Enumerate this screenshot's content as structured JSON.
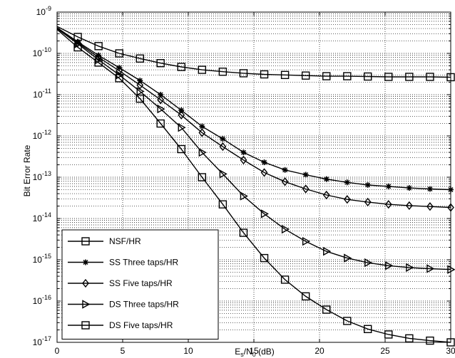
{
  "chart_data": {
    "type": "line",
    "title": "",
    "xlabel": "E",
    "xlabel_sub_s": "s",
    "xlabel_mid": "/N",
    "xlabel_sub_0": "0",
    "xlabel_unit": " (dB)",
    "ylabel": "Bit Error Rate",
    "xlim": [
      0,
      30
    ],
    "ylim_log10": [
      -17,
      -9
    ],
    "y_scale": "log",
    "grid": true,
    "legend_position": "bottom-left",
    "x_ticks": [
      "0",
      "5",
      "10",
      "15",
      "20",
      "25",
      "30"
    ],
    "y_tick_base": "10",
    "y_tick_exponents": [
      "-17",
      "-16",
      "-15",
      "-14",
      "-13",
      "-12",
      "-11",
      "-10",
      "-9"
    ],
    "series": [
      {
        "name": "NSF/HR",
        "marker": "square",
        "x": [
          0,
          1.58,
          3.16,
          4.74,
          6.32,
          7.89,
          9.47,
          11.05,
          12.63,
          14.21,
          15.79,
          17.37,
          18.95,
          20.53,
          22.11,
          23.68,
          25.26,
          26.84,
          28.42,
          30
        ],
        "y": [
          4.5e-10,
          2.5e-10,
          1.5e-10,
          1e-10,
          7.5e-11,
          5.8e-11,
          4.7e-11,
          4e-11,
          3.6e-11,
          3.3e-11,
          3.1e-11,
          3e-11,
          2.9e-11,
          2.8e-11,
          2.8e-11,
          2.75e-11,
          2.7e-11,
          2.7e-11,
          2.7e-11,
          2.65e-11
        ]
      },
      {
        "name": "SS Three taps/HR",
        "marker": "star",
        "x": [
          0,
          1.58,
          3.16,
          4.74,
          6.32,
          7.89,
          9.47,
          11.05,
          12.63,
          14.21,
          15.79,
          17.37,
          18.95,
          20.53,
          22.11,
          23.68,
          25.26,
          26.84,
          28.42,
          30
        ],
        "y": [
          4.2e-10,
          1.9e-10,
          9e-11,
          4.5e-11,
          2.2e-11,
          1e-11,
          4.2e-12,
          1.7e-12,
          8.5e-13,
          4e-13,
          2.3e-13,
          1.5e-13,
          1.15e-13,
          9e-14,
          7.5e-14,
          6.5e-14,
          6e-14,
          5.5e-14,
          5.2e-14,
          5e-14
        ]
      },
      {
        "name": "SS Five taps/HR",
        "marker": "diamond",
        "x": [
          0,
          1.58,
          3.16,
          4.74,
          6.32,
          7.89,
          9.47,
          11.05,
          12.63,
          14.21,
          15.79,
          17.37,
          18.95,
          20.53,
          22.11,
          23.68,
          25.26,
          26.84,
          28.42,
          30
        ],
        "y": [
          4.2e-10,
          1.8e-10,
          8e-11,
          3.8e-11,
          1.7e-11,
          7.5e-12,
          3.2e-12,
          1.2e-12,
          5.5e-13,
          2.6e-13,
          1.3e-13,
          7.8e-14,
          5.2e-14,
          3.7e-14,
          2.9e-14,
          2.5e-14,
          2.2e-14,
          2.05e-14,
          1.95e-14,
          1.85e-14
        ]
      },
      {
        "name": "DS Three taps/HR",
        "marker": "triangle-right",
        "x": [
          0,
          1.58,
          3.16,
          4.74,
          6.32,
          7.89,
          9.47,
          11.05,
          12.63,
          14.21,
          15.79,
          17.37,
          18.95,
          20.53,
          22.11,
          23.68,
          25.26,
          26.84,
          28.42,
          30
        ],
        "y": [
          4e-10,
          1.7e-10,
          7e-11,
          3e-11,
          1.2e-11,
          4.5e-12,
          1.6e-12,
          4e-13,
          1.2e-13,
          3.5e-14,
          1.3e-14,
          5.5e-15,
          2.8e-15,
          1.6e-15,
          1.1e-15,
          8.5e-16,
          7.2e-16,
          6.5e-16,
          6.1e-16,
          5.8e-16
        ]
      },
      {
        "name": "DS Five taps/HR",
        "marker": "square",
        "x": [
          0,
          1.58,
          3.16,
          4.74,
          6.32,
          7.89,
          9.47,
          11.05,
          12.63,
          14.21,
          15.79,
          17.37,
          18.95,
          20.53,
          22.11,
          23.68,
          25.26,
          26.84,
          28.42,
          30
        ],
        "y": [
          3.8e-10,
          1.4e-10,
          6e-11,
          2.5e-11,
          8e-12,
          2e-12,
          4.8e-13,
          1e-13,
          2.2e-14,
          4.5e-15,
          1.1e-15,
          3.3e-16,
          1.3e-16,
          6.2e-17,
          3.3e-17,
          2.1e-17,
          1.55e-17,
          1.25e-17,
          1.1e-17,
          1e-17
        ]
      }
    ]
  }
}
